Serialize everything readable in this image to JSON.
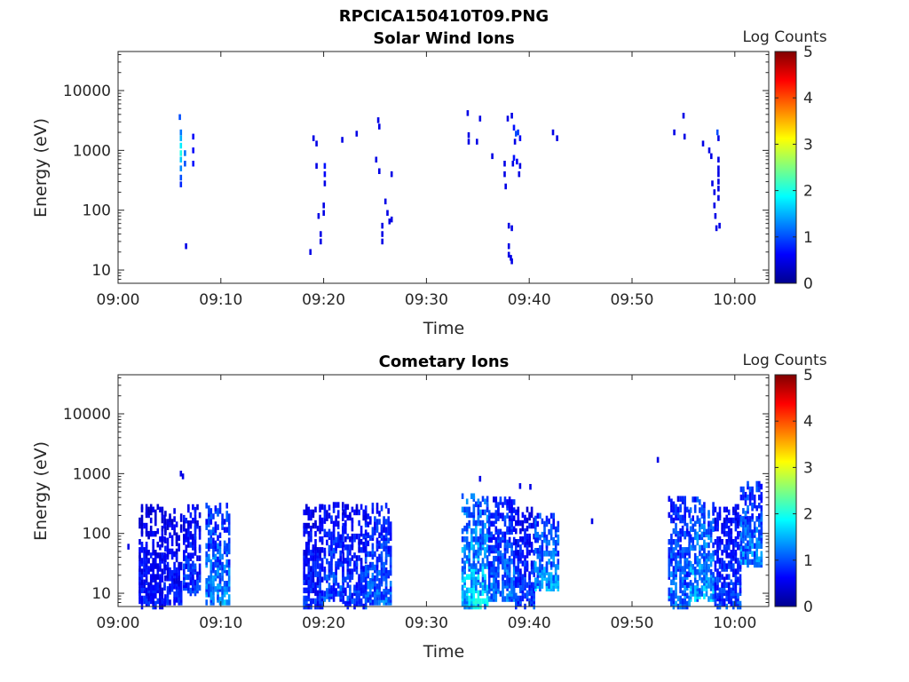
{
  "figure_title": "RPCICA150410T09.PNG",
  "chart_data": [
    {
      "type": "heatmap",
      "title": "Solar Wind Ions",
      "xlabel": "Time",
      "ylabel": "Energy (eV)",
      "x_ticks": [
        "09:00",
        "09:10",
        "09:20",
        "09:30",
        "09:40",
        "09:50",
        "10:00"
      ],
      "y_ticks": [
        "10",
        "100",
        "1000",
        "10000"
      ],
      "y_scale": "log",
      "xlim_minutes": [
        0,
        63.3
      ],
      "ylim": [
        6,
        45000
      ],
      "colorbar": {
        "label": "Log Counts",
        "ticks": [
          "0",
          "1",
          "2",
          "3",
          "4",
          "5"
        ],
        "range": [
          0,
          5
        ]
      },
      "cells": [
        [
          5.9,
          3600,
          1.0
        ],
        [
          6.0,
          2000,
          1.2
        ],
        [
          6.0,
          1600,
          1.5
        ],
        [
          6.0,
          1200,
          1.8
        ],
        [
          6.0,
          900,
          2.0
        ],
        [
          6.0,
          700,
          1.6
        ],
        [
          6.0,
          500,
          1.3
        ],
        [
          6.0,
          350,
          1.0
        ],
        [
          6.0,
          270,
          0.8
        ],
        [
          6.4,
          900,
          1.2
        ],
        [
          6.4,
          600,
          1.0
        ],
        [
          6.5,
          25,
          0.5
        ],
        [
          7.2,
          1700,
          0.6
        ],
        [
          7.2,
          1000,
          0.6
        ],
        [
          7.2,
          600,
          0.7
        ],
        [
          18.6,
          20,
          0.5
        ],
        [
          18.9,
          1600,
          0.5
        ],
        [
          19.2,
          1300,
          0.5
        ],
        [
          19.2,
          550,
          0.5
        ],
        [
          19.4,
          80,
          0.5
        ],
        [
          19.6,
          40,
          0.5
        ],
        [
          19.6,
          30,
          0.5
        ],
        [
          19.9,
          120,
          0.5
        ],
        [
          19.9,
          90,
          0.5
        ],
        [
          20.0,
          550,
          0.7
        ],
        [
          20.0,
          400,
          0.6
        ],
        [
          20.0,
          280,
          0.5
        ],
        [
          21.7,
          1500,
          0.5
        ],
        [
          23.1,
          1900,
          0.5
        ],
        [
          25.2,
          3200,
          0.5
        ],
        [
          25.3,
          2500,
          0.5
        ],
        [
          25.0,
          700,
          0.5
        ],
        [
          25.3,
          450,
          0.5
        ],
        [
          25.6,
          55,
          0.5
        ],
        [
          25.6,
          40,
          0.5
        ],
        [
          25.6,
          30,
          0.5
        ],
        [
          25.9,
          140,
          0.5
        ],
        [
          26.1,
          90,
          0.5
        ],
        [
          26.3,
          65,
          0.5
        ],
        [
          26.5,
          70,
          0.5
        ],
        [
          26.5,
          400,
          0.5
        ],
        [
          33.9,
          4200,
          0.5
        ],
        [
          34.0,
          1800,
          0.5
        ],
        [
          34.0,
          1400,
          0.5
        ],
        [
          34.8,
          1400,
          0.5
        ],
        [
          35.1,
          3400,
          0.5
        ],
        [
          36.3,
          800,
          0.5
        ],
        [
          37.5,
          600,
          0.5
        ],
        [
          37.5,
          400,
          0.5
        ],
        [
          37.6,
          250,
          0.5
        ],
        [
          37.8,
          3400,
          0.5
        ],
        [
          38.2,
          3800,
          0.5
        ],
        [
          38.4,
          2400,
          0.7
        ],
        [
          38.6,
          1900,
          1.0
        ],
        [
          38.8,
          2000,
          0.9
        ],
        [
          39.0,
          1600,
          0.6
        ],
        [
          38.5,
          1400,
          0.5
        ],
        [
          38.4,
          750,
          0.7
        ],
        [
          38.7,
          650,
          0.6
        ],
        [
          39.0,
          550,
          0.5
        ],
        [
          38.9,
          400,
          0.5
        ],
        [
          38.3,
          600,
          0.5
        ],
        [
          37.9,
          55,
          0.5
        ],
        [
          38.2,
          50,
          0.5
        ],
        [
          37.9,
          25,
          0.5
        ],
        [
          37.9,
          18,
          0.5
        ],
        [
          38.1,
          16,
          0.5
        ],
        [
          38.2,
          14,
          0.5
        ],
        [
          42.2,
          2000,
          0.5
        ],
        [
          42.6,
          1600,
          0.5
        ],
        [
          54.0,
          2000,
          0.5
        ],
        [
          54.9,
          3800,
          0.5
        ],
        [
          55.0,
          1700,
          0.5
        ],
        [
          56.8,
          1300,
          0.5
        ],
        [
          57.4,
          1000,
          0.5
        ],
        [
          57.6,
          800,
          0.5
        ],
        [
          57.7,
          280,
          0.5
        ],
        [
          57.9,
          200,
          0.5
        ],
        [
          57.9,
          120,
          0.5
        ],
        [
          58.0,
          80,
          0.5
        ],
        [
          58.1,
          50,
          0.5
        ],
        [
          58.2,
          2000,
          1.0
        ],
        [
          58.3,
          1600,
          0.5
        ],
        [
          58.3,
          700,
          0.5
        ],
        [
          58.3,
          500,
          0.5
        ],
        [
          58.3,
          400,
          0.5
        ],
        [
          58.3,
          300,
          0.5
        ],
        [
          58.3,
          230,
          0.5
        ],
        [
          58.3,
          160,
          0.5
        ],
        [
          58.4,
          55,
          0.5
        ]
      ]
    },
    {
      "type": "heatmap",
      "title": "Cometary Ions",
      "xlabel": "Time",
      "ylabel": "Energy (eV)",
      "x_ticks": [
        "09:00",
        "09:10",
        "09:20",
        "09:30",
        "09:40",
        "09:50",
        "10:00"
      ],
      "y_ticks": [
        "10",
        "100",
        "1000",
        "10000"
      ],
      "y_scale": "log",
      "xlim_minutes": [
        0,
        63.3
      ],
      "ylim": [
        6,
        45000
      ],
      "colorbar": {
        "label": "Log Counts",
        "ticks": [
          "0",
          "1",
          "2",
          "3",
          "4",
          "5"
        ],
        "range": [
          0,
          5
        ]
      },
      "bursts": [
        {
          "t0": 2.0,
          "t1": 4.5,
          "emin": 6,
          "emax": 320,
          "level": 0.8
        },
        {
          "t0": 4.5,
          "t1": 6.2,
          "emin": 7,
          "emax": 250,
          "level": 0.8
        },
        {
          "t0": 6.3,
          "t1": 8.0,
          "emin": 10,
          "emax": 280,
          "level": 1.0
        },
        {
          "t0": 8.5,
          "t1": 10.8,
          "emin": 7,
          "emax": 300,
          "level": 1.4
        },
        {
          "t0": 18.0,
          "t1": 19.8,
          "emin": 6,
          "emax": 300,
          "level": 0.9
        },
        {
          "t0": 20.0,
          "t1": 21.8,
          "emin": 8,
          "emax": 320,
          "level": 1.1
        },
        {
          "t0": 21.8,
          "t1": 24.0,
          "emin": 6,
          "emax": 300,
          "level": 1.0
        },
        {
          "t0": 24.0,
          "t1": 26.5,
          "emin": 7,
          "emax": 300,
          "level": 1.2
        },
        {
          "t0": 33.4,
          "t1": 36.0,
          "emin": 6,
          "emax": 450,
          "level": 1.8
        },
        {
          "t0": 36.0,
          "t1": 38.6,
          "emin": 8,
          "emax": 380,
          "level": 1.3
        },
        {
          "t0": 38.6,
          "t1": 40.5,
          "emin": 6,
          "emax": 260,
          "level": 1.0
        },
        {
          "t0": 40.5,
          "t1": 42.8,
          "emin": 12,
          "emax": 200,
          "level": 1.5
        },
        {
          "t0": 53.5,
          "t1": 55.6,
          "emin": 6,
          "emax": 400,
          "level": 1.3
        },
        {
          "t0": 55.6,
          "t1": 58.0,
          "emin": 8,
          "emax": 380,
          "level": 1.6
        },
        {
          "t0": 58.0,
          "t1": 60.5,
          "emin": 6,
          "emax": 300,
          "level": 1.0
        },
        {
          "t0": 60.5,
          "t1": 62.5,
          "emin": 30,
          "emax": 700,
          "level": 1.4
        }
      ],
      "cells": [
        [
          0.9,
          60,
          0.5
        ],
        [
          6.0,
          1000,
          0.5
        ],
        [
          6.2,
          900,
          0.5
        ],
        [
          52.4,
          1700,
          0.5
        ],
        [
          39.0,
          620,
          0.5
        ],
        [
          40.0,
          600,
          0.5
        ],
        [
          35.1,
          820,
          0.5
        ],
        [
          46.0,
          160,
          0.5
        ]
      ]
    }
  ]
}
